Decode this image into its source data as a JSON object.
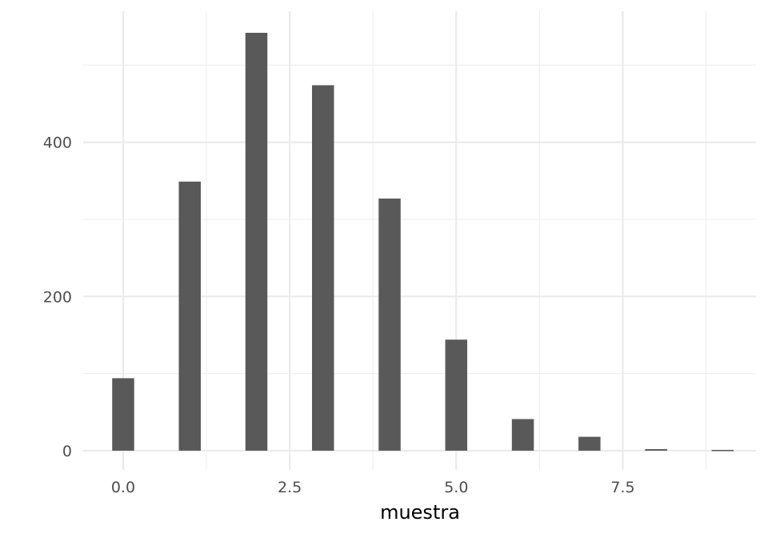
{
  "chart_data": {
    "type": "bar",
    "title": "",
    "xlabel": "muestra",
    "ylabel": "",
    "x": [
      0,
      1,
      2,
      3,
      4,
      5,
      6,
      7,
      8,
      9
    ],
    "values": [
      94,
      349,
      542,
      474,
      327,
      144,
      41,
      18,
      2,
      1
    ],
    "xlim": [
      -0.6,
      9.5
    ],
    "ylim": [
      -25,
      570
    ],
    "x_ticks": [
      0.0,
      2.5,
      5.0,
      7.5
    ],
    "x_tick_labels": [
      "0.0",
      "2.5",
      "5.0",
      "7.5"
    ],
    "y_ticks": [
      0,
      200,
      400
    ],
    "y_tick_labels": [
      "0",
      "200",
      "400"
    ],
    "bar_color": "#595959",
    "grid": true,
    "legend": "none"
  }
}
